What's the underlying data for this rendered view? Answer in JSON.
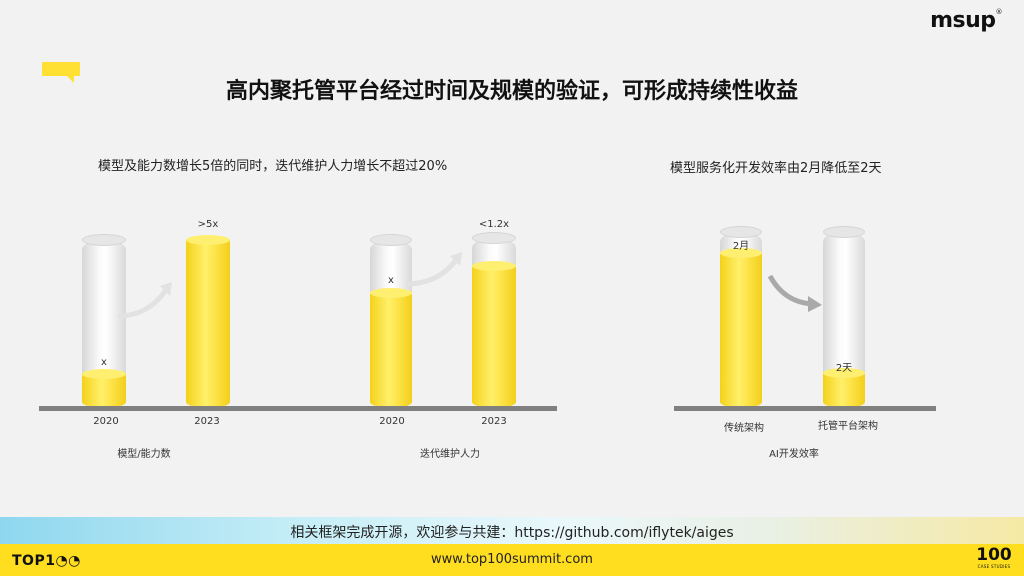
{
  "brand": {
    "logo_text": "msup",
    "logo_mark": "®"
  },
  "title": "高内聚托管平台经过时间及规模的验证，可形成持续性收益",
  "left_panel": {
    "subtitle": "模型及能力数增长5倍的同时，迭代维护人力增长不超过20%",
    "charts": [
      {
        "caption": "模型/能力数",
        "bars": [
          {
            "year": "2020",
            "label": "x",
            "level": 0.2
          },
          {
            "year": "2023",
            "label": ">5x",
            "level": 1.0
          }
        ]
      },
      {
        "caption": "迭代维护人力",
        "bars": [
          {
            "year": "2020",
            "label": "x",
            "level": 0.67
          },
          {
            "year": "2023",
            "label": "<1.2x",
            "level": 0.8
          }
        ]
      }
    ]
  },
  "right_panel": {
    "subtitle": "模型服务化开发效率由2月降低至2天",
    "chart": {
      "caption": "AI开发效率",
      "bars": [
        {
          "category": "传统架构",
          "label": "2月",
          "level": 0.87
        },
        {
          "category": "托管平台架构",
          "label": "2天",
          "level": 0.18
        }
      ]
    }
  },
  "banner": "相关框架完成开源，欢迎参与共建：https://github.com/iflytek/aiges",
  "footer": {
    "url": "www.top100summit.com",
    "left_logo": "TOP1",
    "right_logo_big": "100",
    "right_logo_small": "CASE STUDIES"
  },
  "colors": {
    "accent_yellow": "#ffdd1f",
    "bar_yellow": "#f8dc2b",
    "baseline_gray": "#808080"
  }
}
